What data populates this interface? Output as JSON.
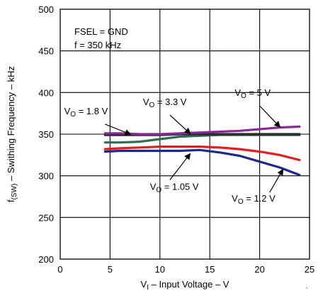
{
  "chart_data": {
    "type": "line",
    "xlabel": {
      "prefix": "V",
      "sub": "I",
      "rest": " – Input Voltage – V"
    },
    "ylabel": {
      "prefix": "f",
      "sub": "(SW)",
      "rest": " – Swithing Frequency – kHz"
    },
    "xlim": [
      0,
      25
    ],
    "ylim": [
      200,
      500
    ],
    "xticks": [
      0,
      5,
      10,
      15,
      20,
      25
    ],
    "yticks": [
      200,
      250,
      300,
      350,
      400,
      450,
      500
    ],
    "grid": false,
    "info_box": [
      "FSEL = GND",
      "f = 350 kHz"
    ],
    "series": [
      {
        "id": "vo-1p8",
        "color": "#2e6e4e",
        "points": [
          [
            4.5,
            340
          ],
          [
            6,
            340
          ],
          [
            8,
            341
          ],
          [
            10,
            344
          ],
          [
            12,
            347
          ],
          [
            14,
            348
          ],
          [
            16,
            349
          ],
          [
            18,
            349
          ],
          [
            20,
            349
          ],
          [
            22,
            349
          ],
          [
            24,
            349
          ]
        ]
      },
      {
        "id": "vo-3p3",
        "color": "#2a2a2a",
        "points": [
          [
            4.5,
            349
          ],
          [
            6,
            349
          ],
          [
            8,
            349
          ],
          [
            10,
            349
          ],
          [
            12,
            350
          ],
          [
            14,
            350
          ],
          [
            16,
            350
          ],
          [
            18,
            350
          ],
          [
            20,
            350
          ],
          [
            22,
            350
          ],
          [
            24,
            350
          ]
        ]
      },
      {
        "id": "vo-5",
        "color": "#8a2a9a",
        "points": [
          [
            4.5,
            351
          ],
          [
            6,
            351
          ],
          [
            8,
            350
          ],
          [
            10,
            350
          ],
          [
            12,
            351
          ],
          [
            14,
            352
          ],
          [
            16,
            353
          ],
          [
            18,
            354
          ],
          [
            20,
            356
          ],
          [
            22,
            358
          ],
          [
            24,
            359
          ]
        ]
      },
      {
        "id": "vo-1p2",
        "color": "#e02020",
        "points": [
          [
            4.5,
            332
          ],
          [
            6,
            333
          ],
          [
            8,
            334
          ],
          [
            10,
            335
          ],
          [
            12,
            335
          ],
          [
            14,
            335
          ],
          [
            16,
            334
          ],
          [
            18,
            332
          ],
          [
            20,
            329
          ],
          [
            22,
            325
          ],
          [
            24,
            319
          ]
        ]
      },
      {
        "id": "vo-1p05",
        "color": "#1a2a8a",
        "points": [
          [
            4.5,
            329
          ],
          [
            6,
            330
          ],
          [
            8,
            330
          ],
          [
            10,
            330
          ],
          [
            12,
            330
          ],
          [
            14,
            331
          ],
          [
            16,
            328
          ],
          [
            18,
            324
          ],
          [
            20,
            317
          ],
          [
            22,
            310
          ],
          [
            24,
            301
          ]
        ]
      }
    ],
    "annotations": [
      {
        "id": "vo-1p8",
        "prefix": "V",
        "sub": "O",
        "rest": " = 1.8 V",
        "anchor": [
          0.4,
          374
        ],
        "arrow_from": [
          4.5,
          362
        ],
        "arrow_to": [
          7.0,
          350
        ]
      },
      {
        "id": "vo-3p3",
        "prefix": "V",
        "sub": "O",
        "rest": " = 3.3 V",
        "anchor": [
          8.3,
          385
        ],
        "arrow_from": [
          11.0,
          373
        ],
        "arrow_to": [
          13.0,
          351
        ]
      },
      {
        "id": "vo-5",
        "prefix": "V",
        "sub": "O",
        "rest": " = 5 V",
        "anchor": [
          17.5,
          396
        ],
        "arrow_from": [
          20.0,
          384
        ],
        "arrow_to": [
          22.0,
          359
        ]
      },
      {
        "id": "vo-1p05",
        "prefix": "V",
        "sub": "O",
        "rest": " = 1.05 V",
        "anchor": [
          9.0,
          283
        ],
        "arrow_from": [
          11.0,
          295
        ],
        "arrow_to": [
          13.0,
          326
        ]
      },
      {
        "id": "vo-1p2",
        "prefix": "V",
        "sub": "O",
        "rest": " = 1.2 V",
        "anchor": [
          17.2,
          269
        ],
        "arrow_from": [
          21.0,
          280
        ],
        "arrow_to": [
          22.3,
          307
        ]
      }
    ]
  }
}
